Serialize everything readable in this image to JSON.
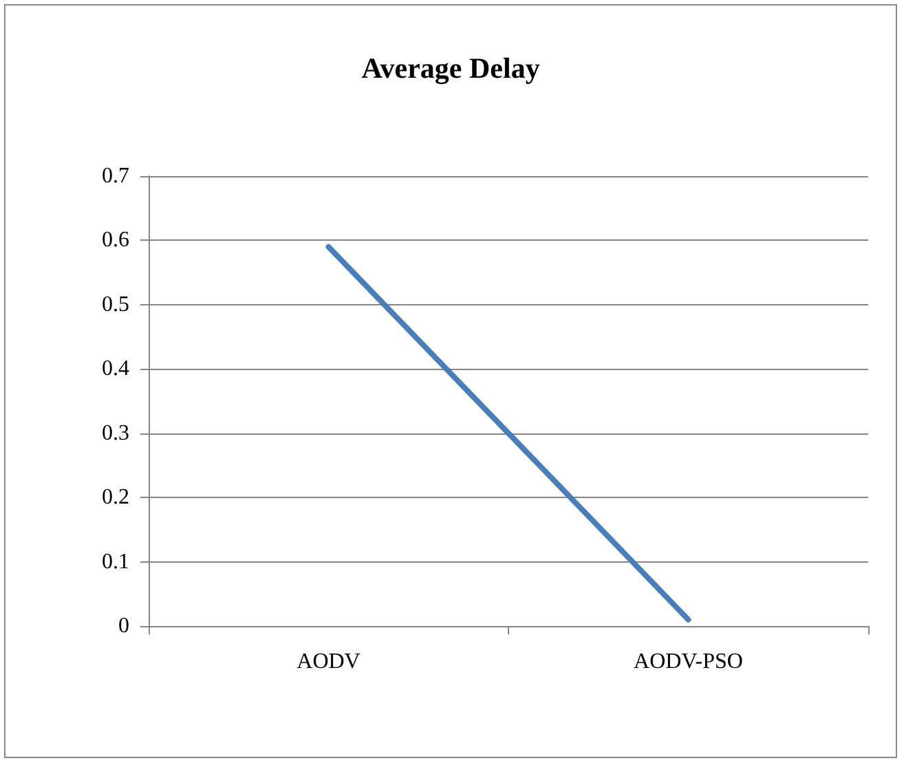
{
  "chart_data": {
    "type": "line",
    "title": "Average Delay",
    "categories": [
      "AODV",
      "AODV-PSO"
    ],
    "series": [
      {
        "color": "#4a7ebb",
        "values": [
          0.59,
          0.01
        ]
      }
    ],
    "ylim": [
      0,
      0.7
    ],
    "yticks": [
      0,
      0.1,
      0.2,
      0.3,
      0.4,
      0.5,
      0.6,
      0.7
    ],
    "grid": "y",
    "marker": "none",
    "line_style": "solid"
  }
}
